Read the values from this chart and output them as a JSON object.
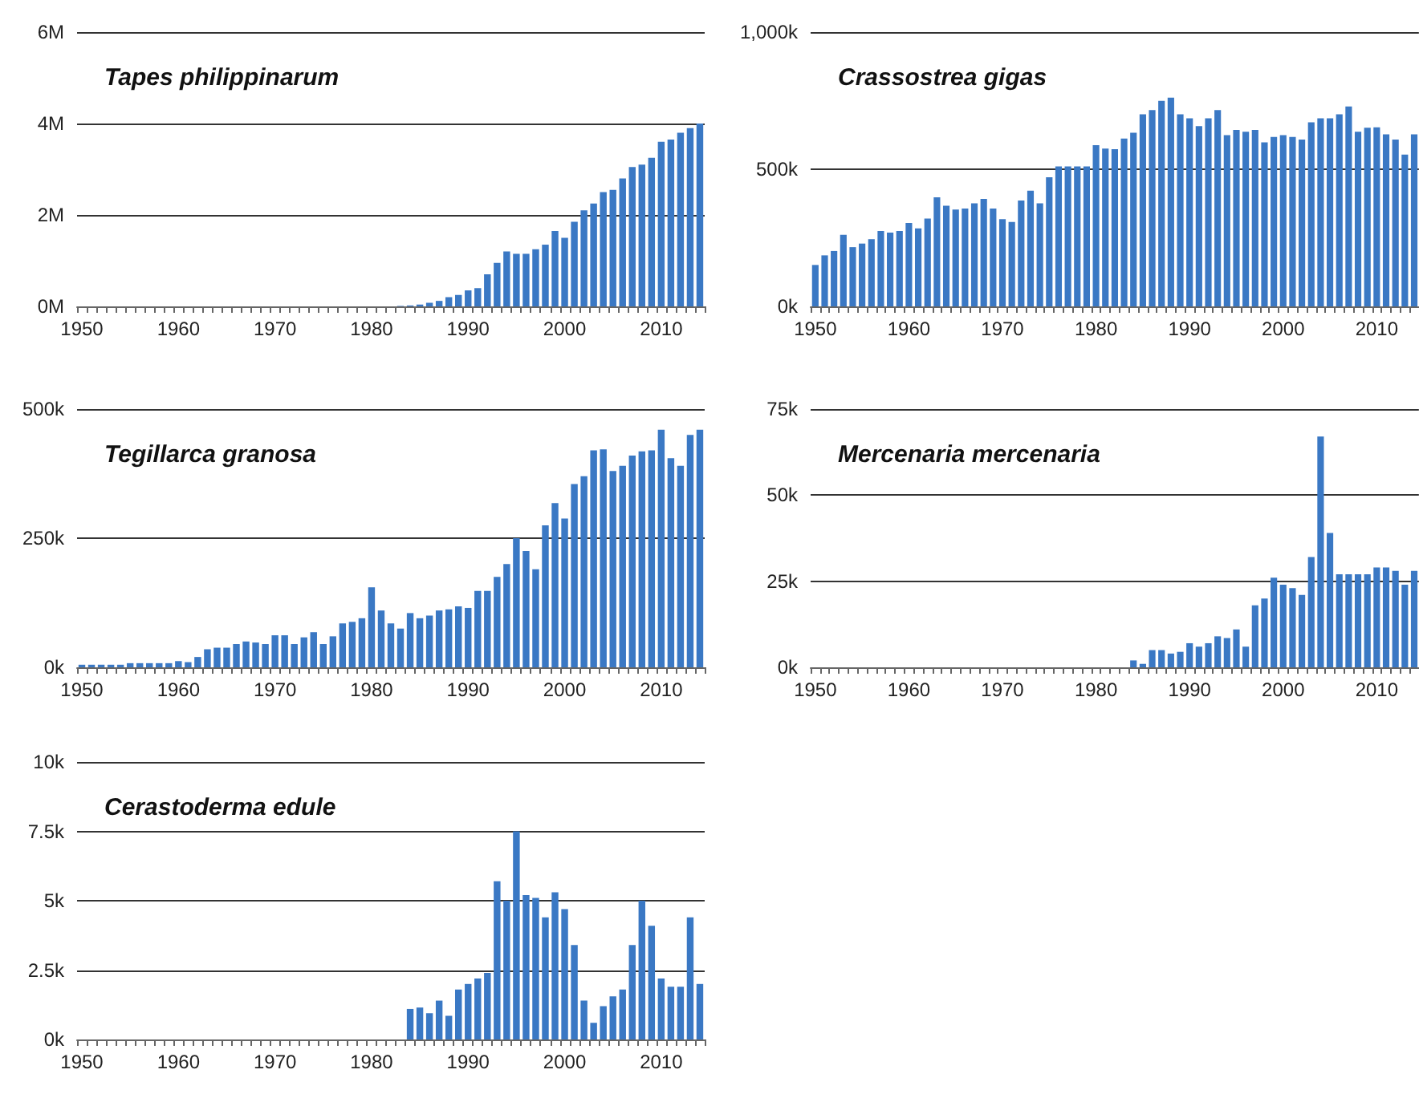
{
  "chart_data": [
    {
      "type": "bar",
      "title": "Tapes philippinarum",
      "categories": [
        "1950",
        null,
        null,
        null,
        null,
        null,
        null,
        null,
        null,
        null,
        "1960",
        null,
        null,
        null,
        null,
        null,
        null,
        null,
        null,
        null,
        "1970",
        null,
        null,
        null,
        null,
        null,
        null,
        null,
        null,
        null,
        "1980",
        null,
        null,
        null,
        null,
        null,
        null,
        null,
        null,
        null,
        "1990",
        null,
        null,
        null,
        null,
        null,
        null,
        null,
        null,
        null,
        "2000",
        null,
        null,
        null,
        null,
        null,
        null,
        null,
        null,
        null,
        "2010",
        null,
        null,
        null,
        null
      ],
      "values": [
        0,
        0,
        0,
        0,
        0,
        0,
        0,
        0,
        0,
        0,
        0,
        0,
        0,
        0,
        0,
        0,
        0,
        0,
        0,
        0,
        0,
        0,
        0,
        0,
        0,
        0,
        0,
        0,
        0,
        0,
        0,
        0,
        0,
        0.01,
        0.02,
        0.04,
        0.08,
        0.12,
        0.2,
        0.25,
        0.35,
        0.4,
        0.7,
        0.95,
        1.2,
        1.15,
        1.15,
        1.25,
        1.35,
        1.65,
        1.5,
        1.85,
        2.1,
        2.25,
        2.5,
        2.55,
        2.8,
        3.05,
        3.1,
        3.25,
        3.6,
        3.65,
        3.8,
        3.9,
        4.0
      ],
      "color": "#3a78c4",
      "ylim": [
        0,
        6
      ],
      "yticks": [
        {
          "value": 0,
          "label": "0M"
        },
        {
          "value": 2,
          "label": "2M"
        },
        {
          "value": 4,
          "label": "4M"
        },
        {
          "value": 6,
          "label": "6M"
        }
      ],
      "grid": "y"
    },
    {
      "type": "bar",
      "title": "Crassostrea gigas",
      "categories": [
        "1950",
        null,
        null,
        null,
        null,
        null,
        null,
        null,
        null,
        null,
        "1960",
        null,
        null,
        null,
        null,
        null,
        null,
        null,
        null,
        null,
        "1970",
        null,
        null,
        null,
        null,
        null,
        null,
        null,
        null,
        null,
        "1980",
        null,
        null,
        null,
        null,
        null,
        null,
        null,
        null,
        null,
        "1990",
        null,
        null,
        null,
        null,
        null,
        null,
        null,
        null,
        null,
        "2000",
        null,
        null,
        null,
        null,
        null,
        null,
        null,
        null,
        null,
        "2010",
        null,
        null,
        null,
        null
      ],
      "values": [
        151,
        186,
        202,
        261,
        216,
        229,
        245,
        275,
        269,
        275,
        304,
        284,
        320,
        398,
        367,
        353,
        357,
        376,
        392,
        357,
        318,
        308,
        386,
        422,
        376,
        471,
        510,
        510,
        510,
        510,
        588,
        575,
        573,
        612,
        633,
        700,
        716,
        749,
        761,
        700,
        686,
        657,
        686,
        716,
        624,
        643,
        637,
        643,
        598,
        618,
        624,
        618,
        608,
        671,
        686,
        686,
        700,
        729,
        637,
        651,
        653,
        627,
        608,
        553,
        627
      ],
      "color": "#3a78c4",
      "ylim": [
        0,
        1000
      ],
      "yticks": [
        {
          "value": 0,
          "label": "0k"
        },
        {
          "value": 500,
          "label": "500k"
        },
        {
          "value": 1000,
          "label": "1,000k"
        }
      ],
      "grid": "y"
    },
    {
      "type": "bar",
      "title": "Tegillarca granosa",
      "categories": [
        "1950",
        null,
        null,
        null,
        null,
        null,
        null,
        null,
        null,
        null,
        "1960",
        null,
        null,
        null,
        null,
        null,
        null,
        null,
        null,
        null,
        "1970",
        null,
        null,
        null,
        null,
        null,
        null,
        null,
        null,
        null,
        "1980",
        null,
        null,
        null,
        null,
        null,
        null,
        null,
        null,
        null,
        "1990",
        null,
        null,
        null,
        null,
        null,
        null,
        null,
        null,
        null,
        "2000",
        null,
        null,
        null,
        null,
        null,
        null,
        null,
        null,
        null,
        "2010",
        null,
        null,
        null,
        null
      ],
      "values": [
        5,
        5,
        5,
        5,
        5,
        8,
        8,
        8,
        8,
        8,
        12,
        10,
        20,
        35,
        38,
        38,
        45,
        50,
        48,
        45,
        62,
        62,
        45,
        58,
        68,
        45,
        60,
        85,
        88,
        95,
        155,
        110,
        85,
        75,
        105,
        95,
        100,
        110,
        112,
        118,
        115,
        148,
        148,
        175,
        200,
        250,
        225,
        190,
        275,
        318,
        288,
        355,
        370,
        420,
        422,
        380,
        390,
        410,
        418,
        420,
        460,
        405,
        390,
        450,
        460
      ],
      "color": "#3a78c4",
      "ylim": [
        0,
        500
      ],
      "yticks": [
        {
          "value": 0,
          "label": "0k"
        },
        {
          "value": 250,
          "label": "250k"
        },
        {
          "value": 500,
          "label": "500k"
        }
      ],
      "grid": "y"
    },
    {
      "type": "bar",
      "title": "Mercenaria mercenaria",
      "categories": [
        "1950",
        null,
        null,
        null,
        null,
        null,
        null,
        null,
        null,
        null,
        "1960",
        null,
        null,
        null,
        null,
        null,
        null,
        null,
        null,
        null,
        "1970",
        null,
        null,
        null,
        null,
        null,
        null,
        null,
        null,
        null,
        "1980",
        null,
        null,
        null,
        null,
        null,
        null,
        null,
        null,
        null,
        "1990",
        null,
        null,
        null,
        null,
        null,
        null,
        null,
        null,
        null,
        "2000",
        null,
        null,
        null,
        null,
        null,
        null,
        null,
        null,
        null,
        "2010",
        null,
        null,
        null,
        null
      ],
      "values": [
        0,
        0,
        0,
        0,
        0,
        0,
        0,
        0,
        0,
        0,
        0,
        0,
        0,
        0,
        0,
        0,
        0,
        0,
        0,
        0,
        0,
        0,
        0,
        0,
        0,
        0,
        0,
        0,
        0,
        0,
        0,
        0,
        0,
        0,
        2,
        1,
        5,
        5,
        4,
        4.5,
        7,
        6,
        7,
        9,
        8.5,
        11,
        6,
        18,
        20,
        26,
        24,
        23,
        21,
        32,
        67,
        39,
        27,
        27,
        27,
        27,
        29,
        29,
        28,
        24,
        28
      ],
      "color": "#3a78c4",
      "ylim": [
        0,
        75
      ],
      "yticks": [
        {
          "value": 0,
          "label": "0k"
        },
        {
          "value": 25,
          "label": "25k"
        },
        {
          "value": 50,
          "label": "50k"
        },
        {
          "value": 75,
          "label": "75k"
        }
      ],
      "grid": "y"
    },
    {
      "type": "bar",
      "title": "Cerastoderma edule",
      "categories": [
        "1950",
        null,
        null,
        null,
        null,
        null,
        null,
        null,
        null,
        null,
        "1960",
        null,
        null,
        null,
        null,
        null,
        null,
        null,
        null,
        null,
        "1970",
        null,
        null,
        null,
        null,
        null,
        null,
        null,
        null,
        null,
        "1980",
        null,
        null,
        null,
        null,
        null,
        null,
        null,
        null,
        null,
        "1990",
        null,
        null,
        null,
        null,
        null,
        null,
        null,
        null,
        null,
        "2000",
        null,
        null,
        null,
        null,
        null,
        null,
        null,
        null,
        null,
        "2010",
        null,
        null,
        null,
        null
      ],
      "values": [
        0,
        0,
        0,
        0,
        0,
        0,
        0,
        0,
        0,
        0,
        0,
        0,
        0,
        0,
        0,
        0,
        0,
        0,
        0,
        0,
        0,
        0,
        0,
        0,
        0,
        0,
        0,
        0,
        0,
        0,
        0,
        0,
        0,
        0,
        1.1,
        1.15,
        0.95,
        1.4,
        0.85,
        1.8,
        2.0,
        2.2,
        2.4,
        5.7,
        5.0,
        7.5,
        5.2,
        5.1,
        4.4,
        5.3,
        4.7,
        3.4,
        1.4,
        0.6,
        1.2,
        1.55,
        1.8,
        3.4,
        5.0,
        4.1,
        2.2,
        1.9,
        1.9,
        4.4,
        2.0
      ],
      "color": "#3a78c4",
      "ylim": [
        0,
        10
      ],
      "yticks": [
        {
          "value": 0,
          "label": "0k"
        },
        {
          "value": 2.5,
          "label": "2.5k"
        },
        {
          "value": 5,
          "label": "5k"
        },
        {
          "value": 7.5,
          "label": "7.5k"
        },
        {
          "value": 10,
          "label": "10k"
        }
      ],
      "grid": "y"
    }
  ]
}
